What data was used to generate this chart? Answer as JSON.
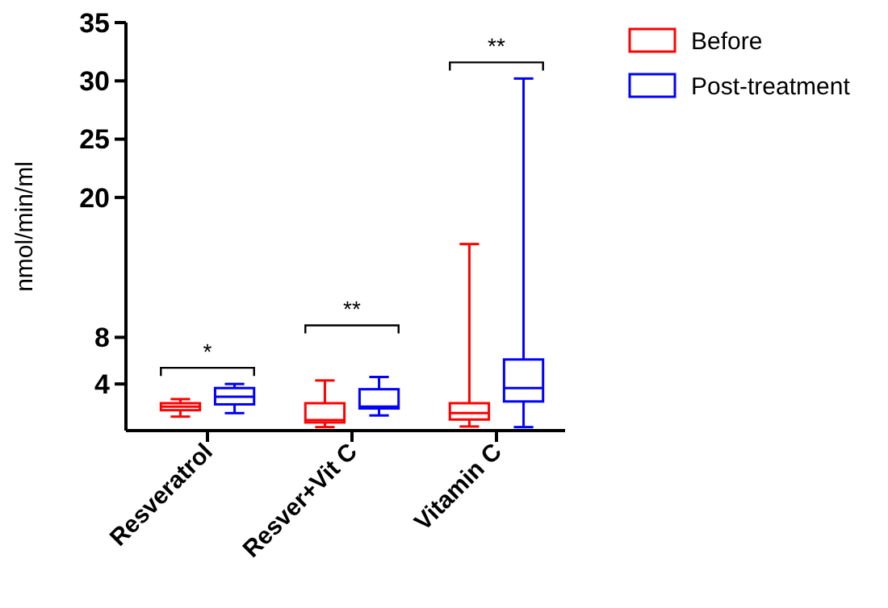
{
  "chart_data": {
    "type": "box",
    "ylabel": "nmol/min/ml",
    "categories": [
      "Resveratrol",
      "Resver+Vit C",
      "Vitamin C"
    ],
    "series": [
      {
        "name": "Before",
        "color": "#ff0000",
        "boxes": [
          {
            "low": 1.2,
            "q1": 1.75,
            "median": 2.05,
            "q3": 2.35,
            "high": 2.7
          },
          {
            "low": 0.3,
            "q1": 0.7,
            "median": 0.9,
            "q3": 2.35,
            "high": 4.3
          },
          {
            "low": 0.35,
            "q1": 0.95,
            "median": 1.5,
            "q3": 2.35,
            "high": 16
          }
        ]
      },
      {
        "name": "Post-treatment",
        "color": "#0000ff",
        "boxes": [
          {
            "low": 1.5,
            "q1": 2.25,
            "median": 2.9,
            "q3": 3.65,
            "high": 4.0
          },
          {
            "low": 1.3,
            "q1": 1.9,
            "median": 2.05,
            "q3": 3.55,
            "high": 4.6
          },
          {
            "low": 0.3,
            "q1": 2.5,
            "median": 3.65,
            "q3": 6.1,
            "high": 30.2
          }
        ]
      }
    ],
    "ylim": [
      0,
      35
    ],
    "yticks": [
      4,
      8,
      20,
      25,
      30,
      35
    ],
    "grid": false,
    "legend": "top right",
    "annotations": [
      "*",
      "**",
      "**"
    ]
  }
}
